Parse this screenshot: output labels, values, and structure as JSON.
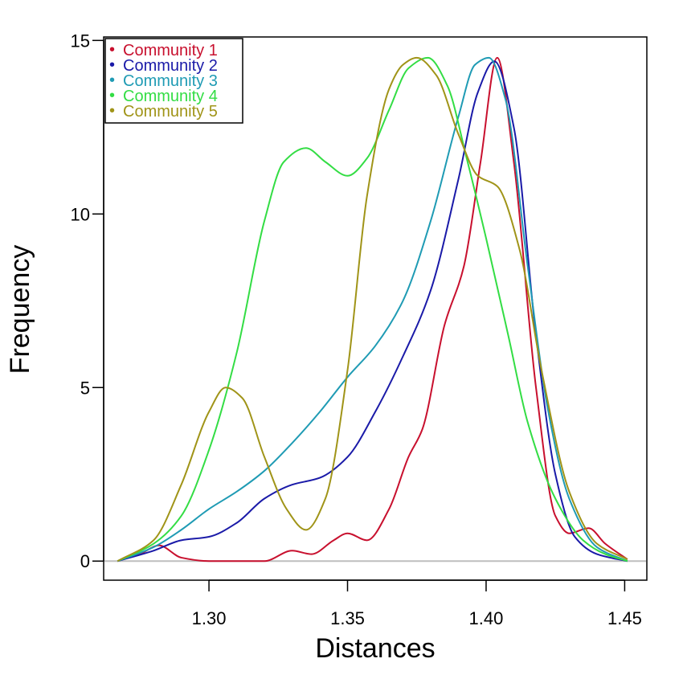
{
  "chart_data": {
    "type": "line",
    "title": "",
    "xlabel": "Distances",
    "ylabel": "Frequency",
    "xlim": [
      1.262,
      1.458
    ],
    "ylim": [
      -0.55,
      15.1
    ],
    "x_ticks": [
      {
        "value": 1.3,
        "label": "1.30"
      },
      {
        "value": 1.35,
        "label": "1.35"
      },
      {
        "value": 1.4,
        "label": "1.40"
      },
      {
        "value": 1.45,
        "label": "1.45"
      }
    ],
    "y_ticks": [
      {
        "value": 0,
        "label": "0"
      },
      {
        "value": 5,
        "label": "5"
      },
      {
        "value": 10,
        "label": "10"
      },
      {
        "value": 15,
        "label": "15"
      }
    ],
    "baseline": {
      "y": 0,
      "color": "#bebebe"
    },
    "grid": false,
    "legend": {
      "position": "top-left",
      "marker": "•"
    },
    "series": [
      {
        "name": "Community 1",
        "color": "#c8102e",
        "x": [
          1.267,
          1.275,
          1.282,
          1.29,
          1.3,
          1.32,
          1.33,
          1.337,
          1.345,
          1.35,
          1.357,
          1.365,
          1.372,
          1.377,
          1.385,
          1.392,
          1.398,
          1.404,
          1.41,
          1.418,
          1.425,
          1.43,
          1.437,
          1.443,
          1.451
        ],
        "y": [
          0,
          0.2,
          0.45,
          0.1,
          0,
          0,
          0.3,
          0.2,
          0.6,
          0.8,
          0.6,
          1.5,
          3.0,
          3.8,
          6.8,
          8.5,
          11.5,
          14.5,
          11.5,
          5.0,
          1.3,
          0.8,
          0.95,
          0.5,
          0.05
        ]
      },
      {
        "name": "Community 2",
        "color": "#1a1aa8",
        "x": [
          1.267,
          1.28,
          1.29,
          1.3,
          1.31,
          1.32,
          1.33,
          1.34,
          1.35,
          1.36,
          1.37,
          1.38,
          1.39,
          1.397,
          1.403,
          1.41,
          1.418,
          1.425,
          1.432,
          1.44,
          1.451
        ],
        "y": [
          0,
          0.3,
          0.6,
          0.7,
          1.1,
          1.8,
          2.2,
          2.4,
          3.0,
          4.3,
          5.9,
          7.8,
          11.0,
          13.5,
          14.4,
          12.5,
          6.5,
          2.5,
          0.7,
          0.2,
          0
        ]
      },
      {
        "name": "Community 3",
        "color": "#1f9bb4",
        "x": [
          1.267,
          1.28,
          1.29,
          1.3,
          1.31,
          1.32,
          1.33,
          1.34,
          1.35,
          1.36,
          1.37,
          1.38,
          1.39,
          1.396,
          1.401,
          1.407,
          1.415,
          1.422,
          1.43,
          1.44,
          1.451
        ],
        "y": [
          0,
          0.4,
          0.9,
          1.5,
          2.0,
          2.6,
          3.4,
          4.3,
          5.3,
          6.2,
          7.5,
          9.8,
          12.8,
          14.3,
          14.5,
          13.3,
          8.5,
          4.5,
          1.8,
          0.4,
          0
        ]
      },
      {
        "name": "Community 4",
        "color": "#33dd44",
        "x": [
          1.267,
          1.28,
          1.29,
          1.3,
          1.31,
          1.32,
          1.327,
          1.335,
          1.342,
          1.35,
          1.357,
          1.365,
          1.372,
          1.379,
          1.386,
          1.393,
          1.4,
          1.408,
          1.415,
          1.425,
          1.435,
          1.443,
          1.451
        ],
        "y": [
          0,
          0.5,
          1.3,
          3.2,
          6.0,
          9.8,
          11.5,
          11.9,
          11.5,
          11.1,
          11.6,
          13.0,
          14.2,
          14.5,
          13.7,
          11.6,
          9.3,
          6.5,
          4.0,
          1.8,
          0.6,
          0.2,
          0
        ]
      },
      {
        "name": "Community 5",
        "color": "#a09418",
        "x": [
          1.267,
          1.28,
          1.29,
          1.3,
          1.306,
          1.312,
          1.32,
          1.328,
          1.335,
          1.342,
          1.35,
          1.357,
          1.365,
          1.37,
          1.375,
          1.382,
          1.39,
          1.397,
          1.404,
          1.412,
          1.42,
          1.43,
          1.44,
          1.451
        ],
        "y": [
          0,
          0.6,
          2.2,
          4.3,
          5.0,
          4.7,
          3.0,
          1.5,
          0.9,
          1.8,
          5.5,
          10.5,
          13.6,
          14.3,
          14.5,
          14.0,
          12.3,
          11.1,
          10.8,
          9.0,
          5.5,
          2.0,
          0.5,
          0.05
        ]
      }
    ]
  }
}
